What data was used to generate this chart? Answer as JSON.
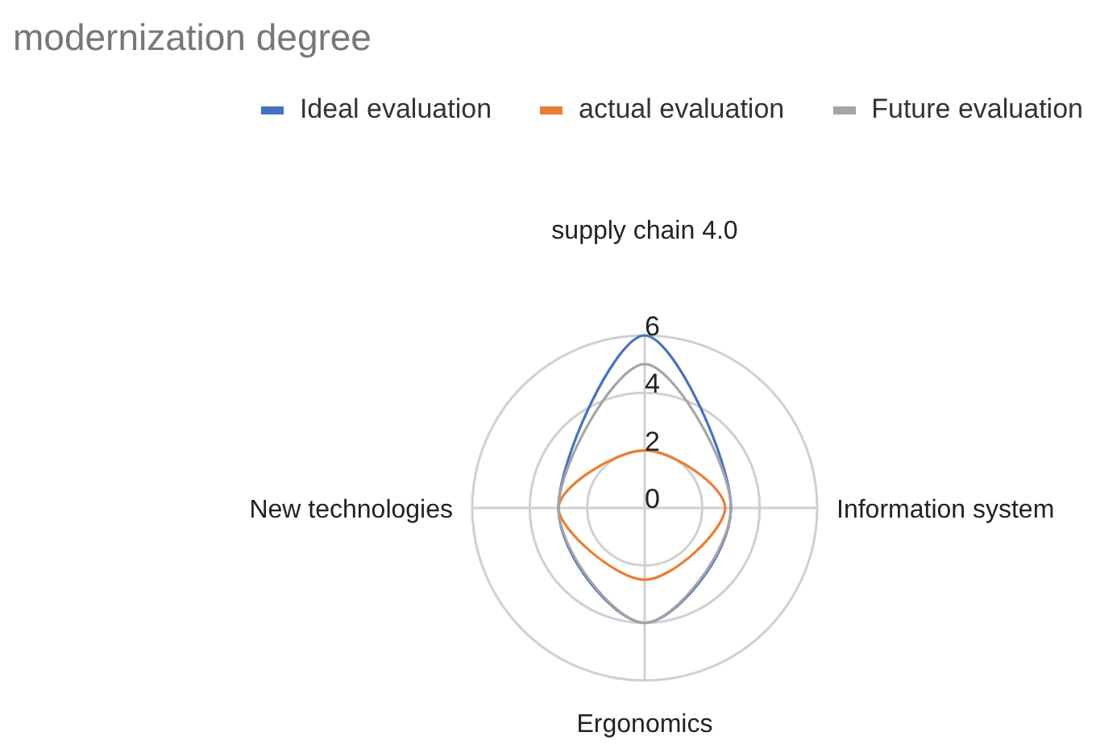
{
  "chart_data": {
    "type": "radar",
    "title": "modernization degree",
    "legend": "top",
    "grid": true,
    "ylim": [
      0,
      6
    ],
    "yticks": [
      0,
      2,
      4,
      6
    ],
    "categories": [
      "supply chain 4.0",
      "Information system",
      "Ergonomics",
      "New technologies"
    ],
    "series": [
      {
        "name": "Ideal evaluation",
        "color": "#4472c4",
        "values": [
          6,
          3,
          4,
          3
        ]
      },
      {
        "name": "actual evaluation",
        "color": "#ed7d31",
        "values": [
          2,
          2.8,
          2.5,
          3
        ]
      },
      {
        "name": "Future evaluation",
        "color": "#a5a5a5",
        "values": [
          5,
          3,
          4,
          3
        ]
      }
    ]
  }
}
